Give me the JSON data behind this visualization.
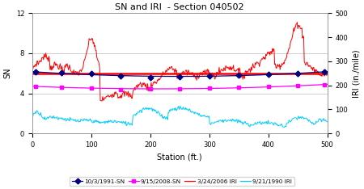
{
  "title": "SN and IRI  - Section 040502",
  "xlabel": "Station (ft.)",
  "ylabel_left": "SN",
  "ylabel_right": "IRI (in./mile)",
  "xlim": [
    0,
    500
  ],
  "ylim_left": [
    0,
    12
  ],
  "ylim_right": [
    0,
    500
  ],
  "avg_iri_last_iri": 250,
  "background_color": "#FFFFFF",
  "plot_bg_color": "#FFFFFF",
  "grid_color": "#BBBBBB",
  "sn_1991_color": "#000080",
  "sn_2008_color": "#FF00FF",
  "iri_2006_color": "#FF0000",
  "iri_1990_color": "#00CCFF",
  "avg_line_color": "#FF0000"
}
